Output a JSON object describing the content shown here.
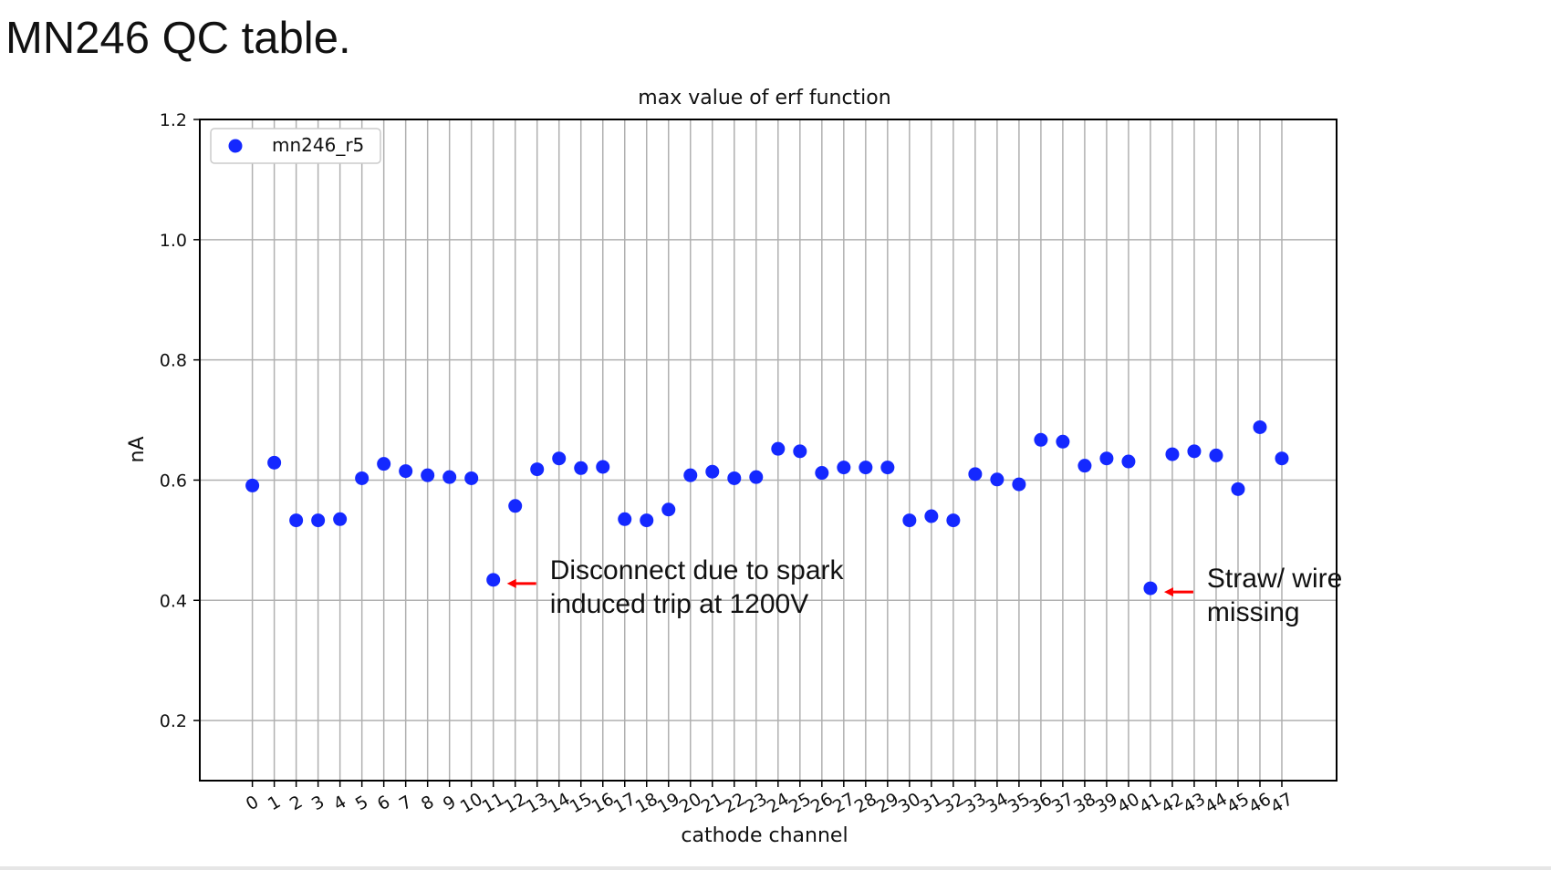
{
  "slide": {
    "title": "MN246 QC table."
  },
  "chart_data": {
    "type": "scatter",
    "title": "max value of erf function",
    "xlabel": "cathode channel",
    "ylabel": "nA",
    "xlim": [
      -2.4,
      49.5
    ],
    "ylim": [
      0.1,
      1.2
    ],
    "yticks": [
      0.2,
      0.4,
      0.6,
      0.8,
      1.0,
      1.2
    ],
    "ytick_labels": [
      "0.2",
      "0.4",
      "0.6",
      "0.8",
      "1.0",
      "1.2"
    ],
    "grid": true,
    "legend_position": "top-left",
    "marker_color": "#1428ff",
    "series": [
      {
        "name": "mn246_r5",
        "x": [
          0,
          1,
          2,
          3,
          4,
          5,
          6,
          7,
          8,
          9,
          10,
          11,
          12,
          13,
          14,
          15,
          16,
          17,
          18,
          19,
          20,
          21,
          22,
          23,
          24,
          25,
          26,
          27,
          28,
          29,
          30,
          31,
          32,
          33,
          34,
          35,
          36,
          37,
          38,
          39,
          40,
          41,
          42,
          43,
          44,
          45,
          46,
          47
        ],
        "y": [
          0.591,
          0.629,
          0.533,
          0.533,
          0.535,
          0.603,
          0.627,
          0.615,
          0.608,
          0.605,
          0.603,
          0.434,
          0.557,
          0.618,
          0.636,
          0.62,
          0.622,
          0.535,
          0.533,
          0.551,
          0.608,
          0.614,
          0.603,
          0.605,
          0.652,
          0.648,
          0.612,
          0.621,
          0.621,
          0.621,
          0.533,
          0.54,
          0.533,
          0.61,
          0.601,
          0.593,
          0.667,
          0.664,
          0.624,
          0.636,
          0.631,
          0.42,
          0.643,
          0.648,
          0.641,
          0.585,
          0.688,
          0.636
        ]
      }
    ],
    "annotations": [
      {
        "lines": [
          "Disconnect due to spark",
          "induced trip at 1200V"
        ],
        "x": 11,
        "y": 0.434,
        "arrow_color": "#ff0000"
      },
      {
        "lines": [
          "Straw/ wire",
          "missing"
        ],
        "x": 41,
        "y": 0.42,
        "arrow_color": "#ff0000"
      }
    ]
  }
}
